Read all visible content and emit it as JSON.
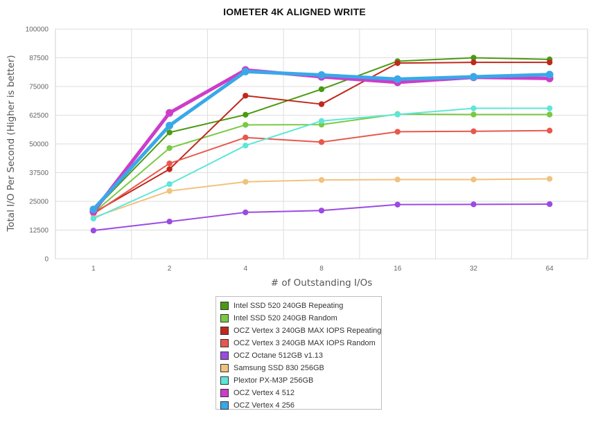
{
  "chart_data": {
    "type": "line",
    "title": "IOMETER 4K ALIGNED WRITE",
    "xlabel": "# of Outstanding I/Os",
    "ylabel": "Total I/O Per Second (Higher is better)",
    "categories": [
      "1",
      "2",
      "4",
      "8",
      "16",
      "32",
      "64"
    ],
    "yticks": [
      "0",
      "12500",
      "25000",
      "37500",
      "50000",
      "62500",
      "75000",
      "87500",
      "100000"
    ],
    "ylim": [
      0,
      100000
    ],
    "grid": true,
    "legend_position": "bottom",
    "series": [
      {
        "name": "Intel SSD 520 240GB Repeating",
        "color": "#4a9a12",
        "values": [
          21000,
          55000,
          62700,
          73800,
          86000,
          87500,
          86800
        ]
      },
      {
        "name": "Intel SSD 520 240GB Random",
        "color": "#7ac943",
        "values": [
          20000,
          48200,
          58300,
          58400,
          63000,
          62800,
          62800
        ]
      },
      {
        "name": "OCZ Vertex 3 240GB MAX IOPS Repeating",
        "color": "#c0281d",
        "values": [
          20000,
          39000,
          71000,
          67300,
          85200,
          85500,
          85500
        ]
      },
      {
        "name": "OCZ Vertex 3 240GB MAX IOPS Random",
        "color": "#e8574d",
        "values": [
          19500,
          41500,
          52800,
          50800,
          55300,
          55500,
          55800
        ]
      },
      {
        "name": "OCZ Octane 512GB v1.13",
        "color": "#9b4ae3",
        "values": [
          12300,
          16200,
          20200,
          21000,
          23600,
          23700,
          23800
        ]
      },
      {
        "name": "Samsung SSD 830 256GB",
        "color": "#f0c27f",
        "values": [
          18000,
          29500,
          33500,
          34300,
          34500,
          34500,
          34800
        ]
      },
      {
        "name": "Plextor PX-M3P 256GB",
        "color": "#5ee6d8",
        "values": [
          17500,
          32500,
          49300,
          60000,
          62800,
          65500,
          65500
        ]
      },
      {
        "name": "OCZ Vertex 4 512",
        "color": "#cc3dc9",
        "values": [
          20500,
          63500,
          82200,
          79200,
          76800,
          79000,
          78500
        ]
      },
      {
        "name": "OCZ Vertex 4 256",
        "color": "#3aa8e8",
        "values": [
          21500,
          58000,
          81500,
          80000,
          78200,
          79200,
          80200
        ]
      }
    ]
  }
}
